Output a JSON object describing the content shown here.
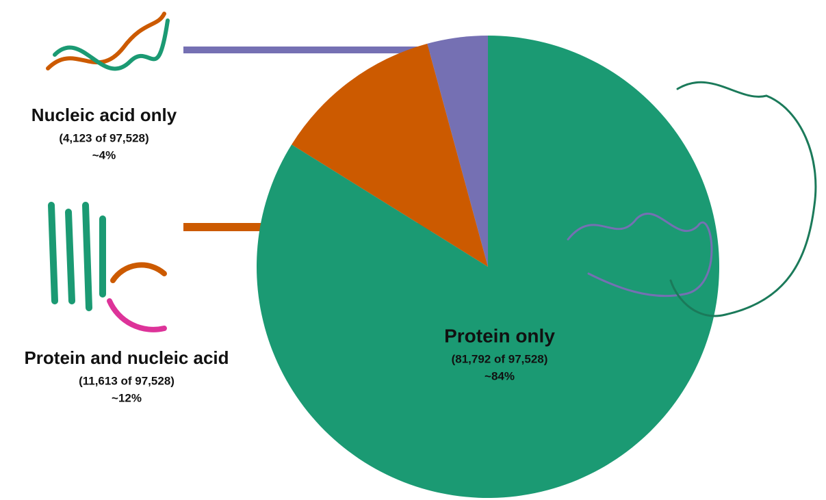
{
  "chart_data": {
    "type": "pie",
    "categories": [
      "Nucleic acid only",
      "Protein and nucleic acid",
      "Protein only"
    ],
    "values": [
      4123,
      11613,
      81792
    ],
    "value_labels": [
      "(4,123 of 97,528)",
      "(11,613 of 97,528)",
      "(81,792 of 97,528)"
    ],
    "percent_labels": [
      "~4%",
      "~12%",
      "~84%"
    ],
    "colors": [
      "#7570b3",
      "#cc5a00",
      "#1b9a73"
    ]
  }
}
